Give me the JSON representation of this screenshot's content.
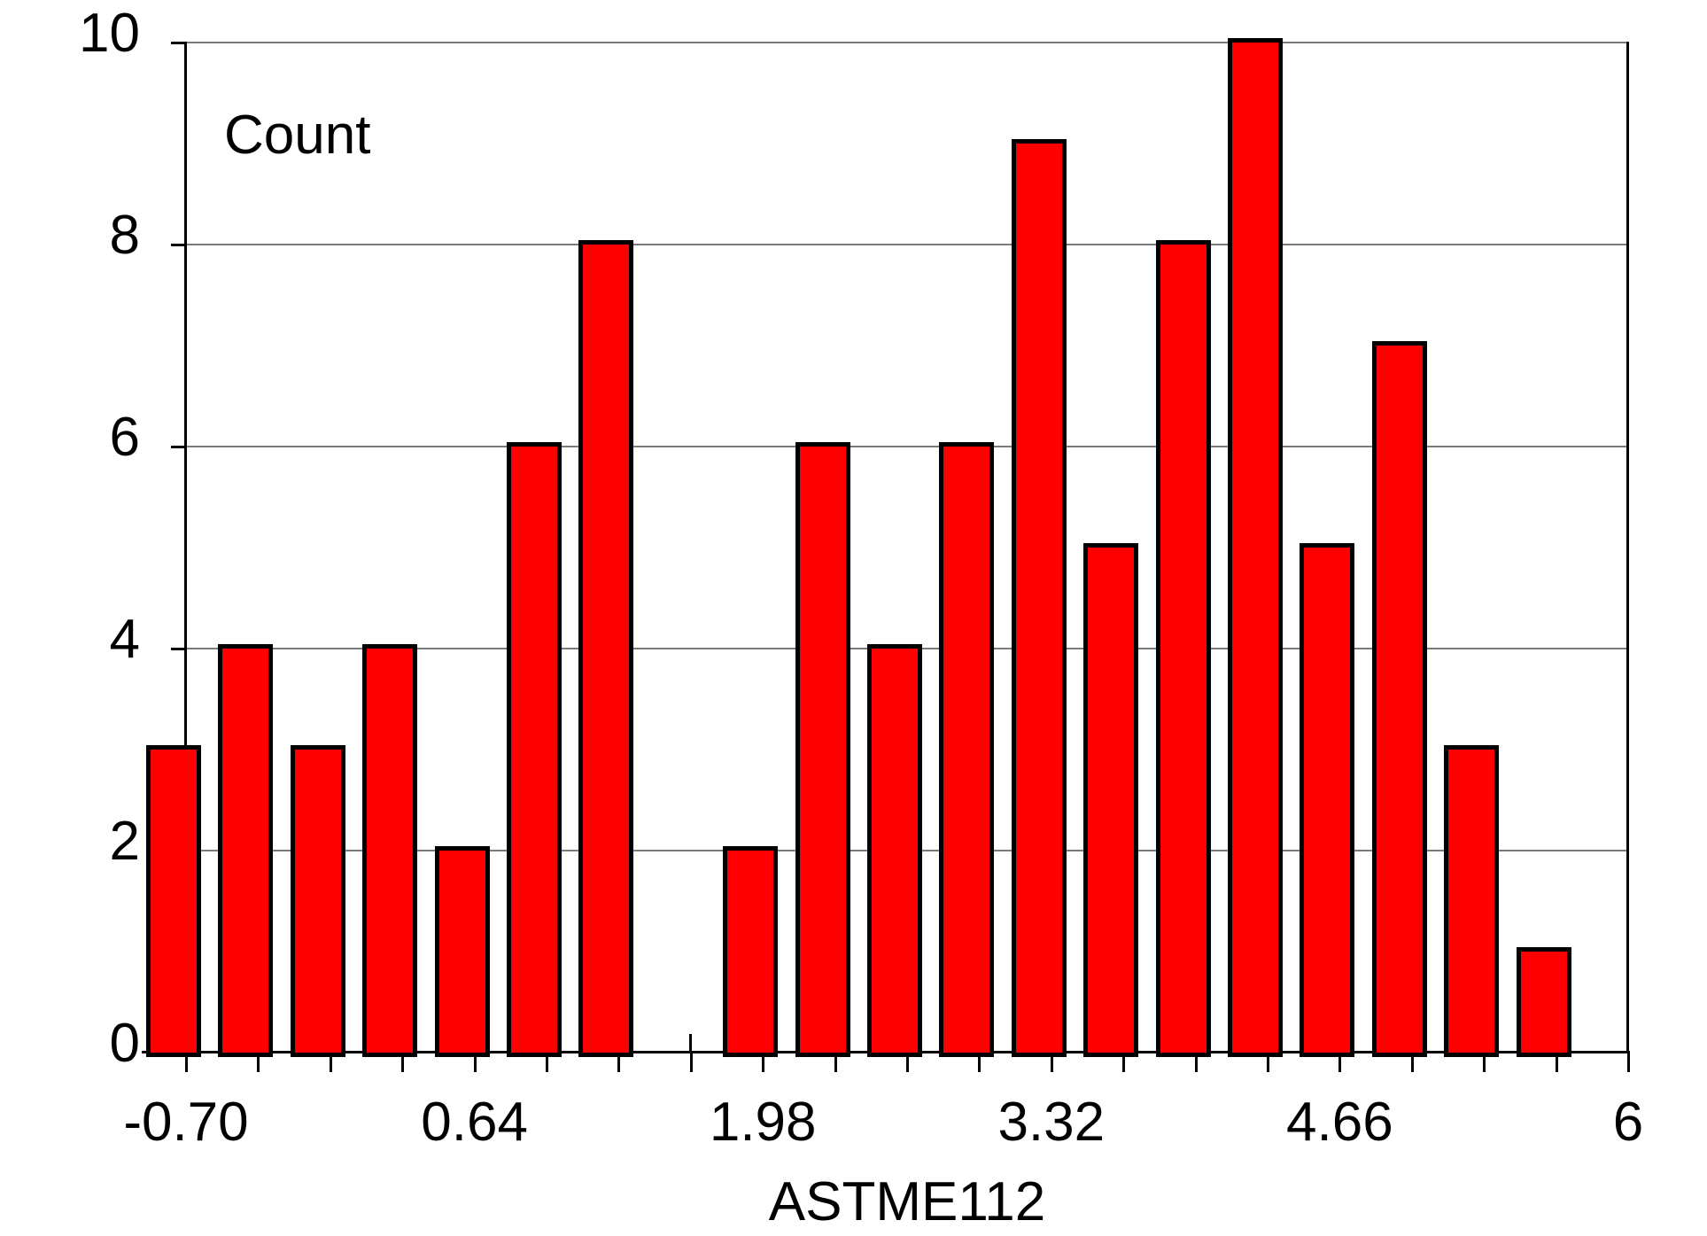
{
  "chart_data": {
    "type": "bar",
    "chart_kind": "histogram",
    "title": "Count",
    "xlabel": "ASTME112",
    "ylabel": "Count",
    "x_tick_labels": [
      "-0.70",
      "0.64",
      "1.98",
      "3.32",
      "4.66",
      "6"
    ],
    "labeled_tick_step": 4,
    "y_ticks": [
      0,
      2,
      4,
      6,
      8,
      10
    ],
    "y_tick_labels": [
      "0",
      "2",
      "4",
      "6",
      "8",
      "10"
    ],
    "ylim": [
      0,
      10
    ],
    "xlim": [
      -0.7,
      6.0
    ],
    "bin_width": 0.335,
    "bin_edges": [
      -0.7,
      -0.365,
      -0.03,
      0.305,
      0.64,
      0.975,
      1.31,
      1.645,
      1.98,
      2.315,
      2.65,
      2.985,
      3.32,
      3.655,
      3.99,
      4.325,
      4.66,
      4.995,
      5.33,
      5.665,
      6.0
    ],
    "values": [
      3,
      4,
      3,
      4,
      2,
      6,
      8,
      0,
      2,
      6,
      4,
      6,
      9,
      5,
      8,
      10,
      5,
      7,
      3,
      1
    ],
    "grid": true,
    "legend": false,
    "colors": {
      "bar_fill": "#ff0000",
      "bar_border": "#000000",
      "grid_line": "#7a7a7a",
      "axis_line": "#000000",
      "text": "#000000"
    }
  }
}
